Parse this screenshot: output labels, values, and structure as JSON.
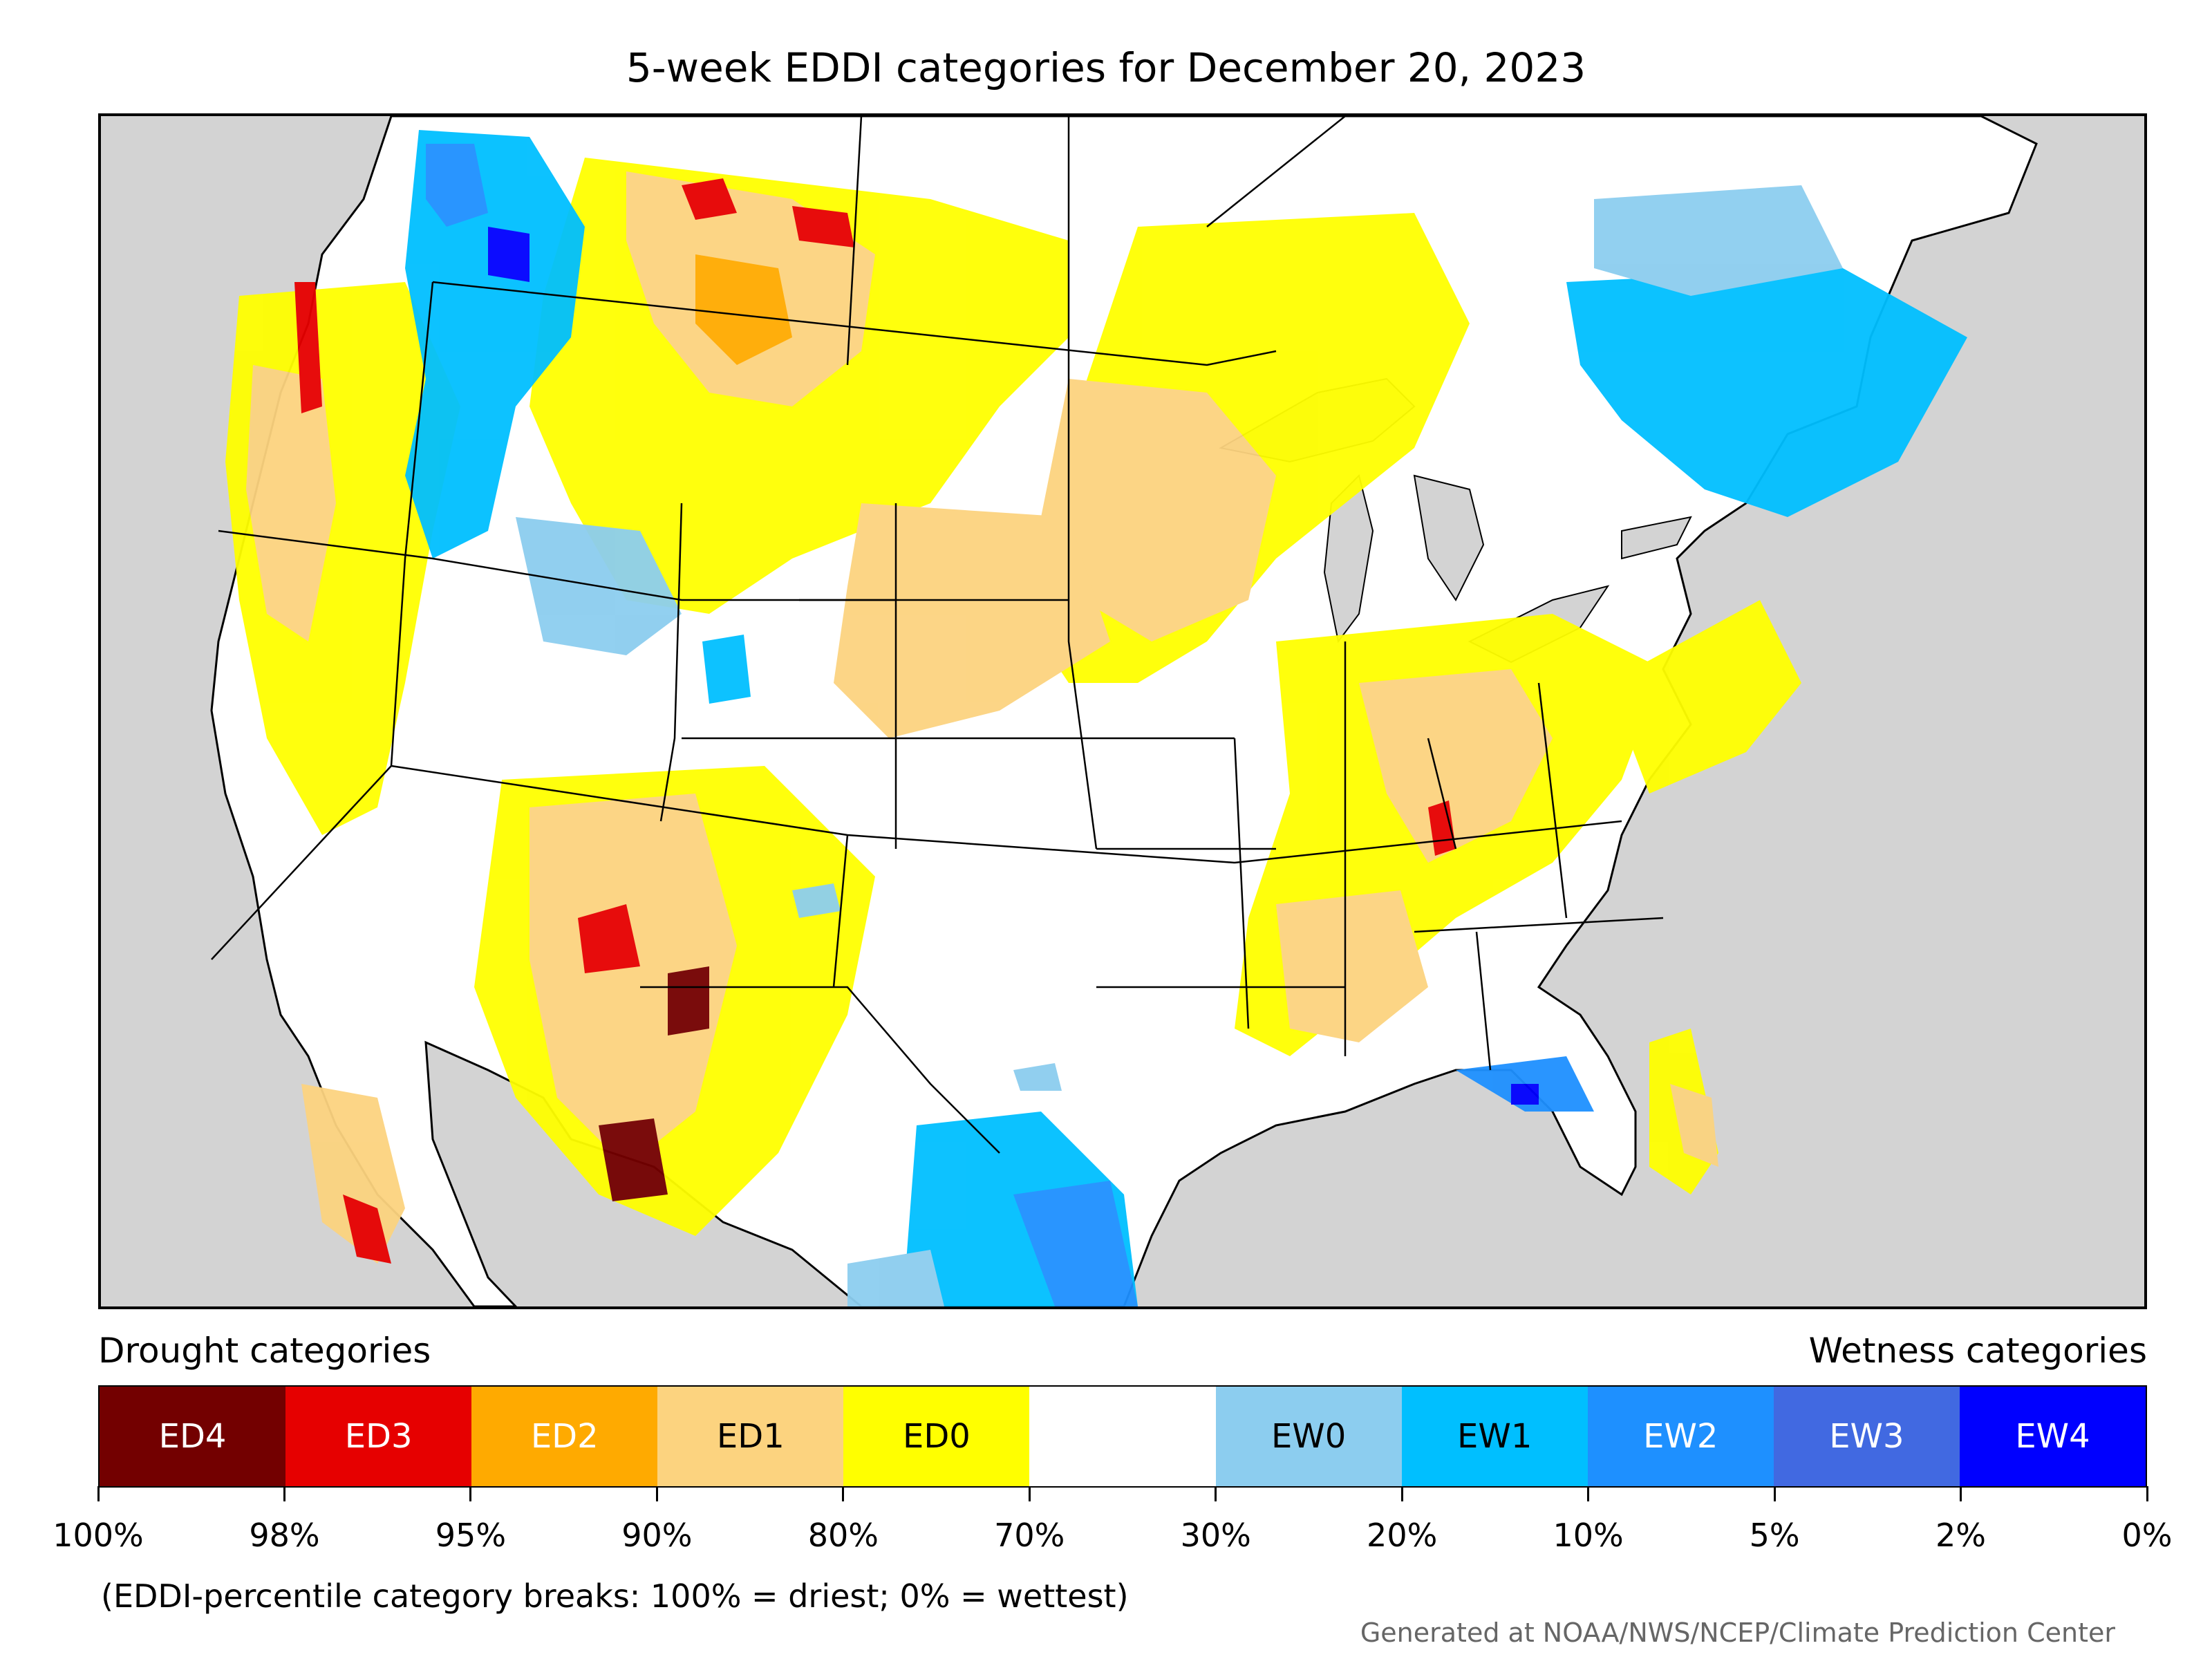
{
  "title": "5-week EDDI categories for December 20, 2023",
  "legend": {
    "drought_heading": "Drought categories",
    "wetness_heading": "Wetness categories",
    "categories": [
      {
        "label": "ED4",
        "color": "#730000",
        "text_color": "#ffffff"
      },
      {
        "label": "ED3",
        "color": "#e60000",
        "text_color": "#ffffff"
      },
      {
        "label": "ED2",
        "color": "#ffaa00",
        "text_color": "#ffffff"
      },
      {
        "label": "ED1",
        "color": "#fcd37f",
        "text_color": "#000000"
      },
      {
        "label": "ED0",
        "color": "#ffff00",
        "text_color": "#000000"
      },
      {
        "label": "",
        "color": "#ffffff",
        "text_color": "#000000"
      },
      {
        "label": "EW0",
        "color": "#8ccdef",
        "text_color": "#000000"
      },
      {
        "label": "EW1",
        "color": "#00bfff",
        "text_color": "#000000"
      },
      {
        "label": "EW2",
        "color": "#1e90ff",
        "text_color": "#ffffff"
      },
      {
        "label": "EW3",
        "color": "#4169e1",
        "text_color": "#ffffff"
      },
      {
        "label": "EW4",
        "color": "#0000ff",
        "text_color": "#ffffff"
      }
    ],
    "breaks": [
      "100%",
      "98%",
      "95%",
      "90%",
      "80%",
      "70%",
      "30%",
      "20%",
      "10%",
      "5%",
      "2%",
      "0%"
    ]
  },
  "footnote": "(EDDI-percentile category breaks: 100% = driest; 0% = wettest)",
  "credit": "Generated at NOAA/NWS/NCEP/Climate Prediction Center",
  "map": {
    "background_color": "#d3d3d3",
    "land_color": "#ffffff",
    "water_color": "#d3d3d3"
  }
}
